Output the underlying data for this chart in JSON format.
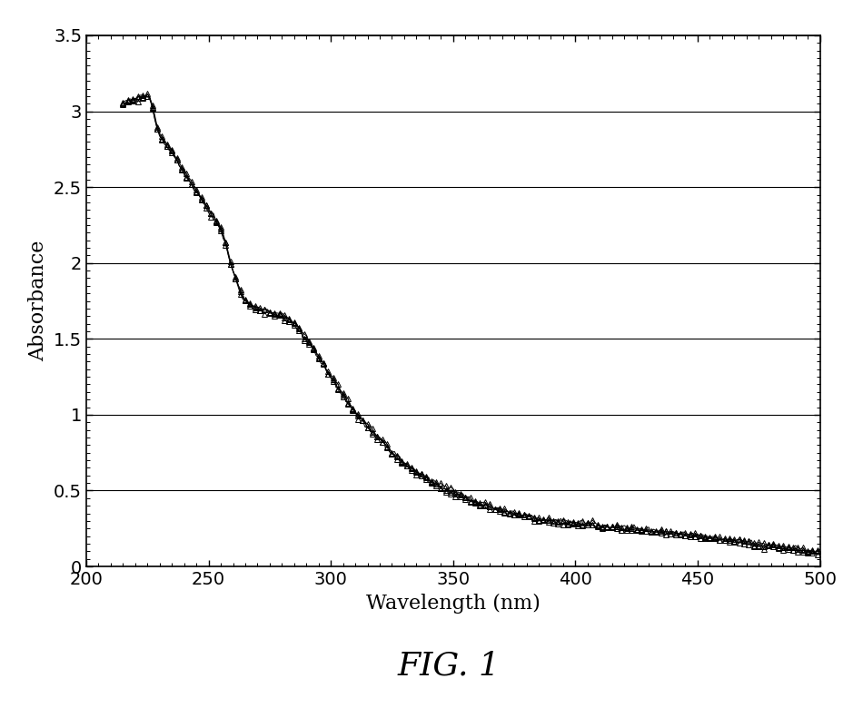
{
  "title": "FIG. 1",
  "xlabel": "Wavelength (nm)",
  "ylabel": "Absorbance",
  "xlim": [
    200,
    500
  ],
  "ylim": [
    0,
    3.5
  ],
  "yticks": [
    0,
    0.5,
    1,
    1.5,
    2,
    2.5,
    3,
    3.5
  ],
  "xticks": [
    200,
    250,
    300,
    350,
    400,
    450,
    500
  ],
  "line_color": "#000000",
  "marker_color": "#000000",
  "background_color": "#ffffff",
  "grid_color": "#000000",
  "xlabel_fontsize": 16,
  "ylabel_fontsize": 16,
  "title_fontsize": 26,
  "tick_fontsize": 14,
  "marker_size": 4,
  "marker_step": 2,
  "linewidth": 0.7
}
